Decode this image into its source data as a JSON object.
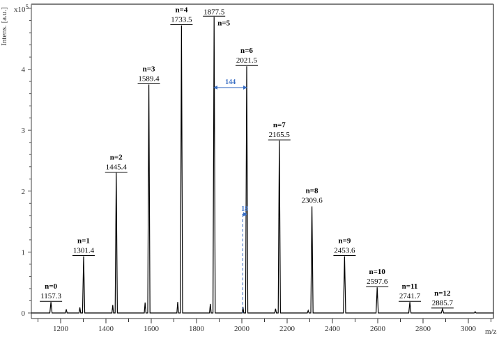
{
  "chart_data": {
    "type": "line",
    "title": "",
    "xlabel": "m/z",
    "ylabel": "Intens. [a.u.]",
    "y_multiplier": "x10^5",
    "y_multiplier_base": "x10",
    "y_multiplier_exp": "5",
    "xlim": [
      1090,
      3110
    ],
    "ylim": [
      0,
      5.0
    ],
    "x_ticks": [
      1200,
      1400,
      1600,
      1800,
      2000,
      2200,
      2400,
      2600,
      2800,
      3000
    ],
    "y_ticks": [
      0,
      1,
      2,
      3,
      4
    ],
    "grid": false,
    "legend": null,
    "peaks": [
      {
        "n": "n=0",
        "mz": "1157.3",
        "x": 1157.3,
        "y": 0.18
      },
      {
        "n": "n=1",
        "mz": "1301.4",
        "x": 1301.4,
        "y": 0.93
      },
      {
        "n": "n=2",
        "mz": "1445.4",
        "x": 1445.4,
        "y": 2.3
      },
      {
        "n": "n=3",
        "mz": "1589.4",
        "x": 1589.4,
        "y": 3.75
      },
      {
        "n": "n=4",
        "mz": "1733.5",
        "x": 1733.5,
        "y": 4.72
      },
      {
        "n": "n=5",
        "mz": "1877.5",
        "x": 1877.5,
        "y": 4.86
      },
      {
        "n": "n=6",
        "mz": "2021.5",
        "x": 2021.5,
        "y": 4.05
      },
      {
        "n": "n=7",
        "mz": "2165.5",
        "x": 2165.5,
        "y": 2.83
      },
      {
        "n": "n=8",
        "mz": "2309.6",
        "x": 2309.6,
        "y": 1.75
      },
      {
        "n": "n=9",
        "mz": "2453.6",
        "x": 2453.6,
        "y": 0.93
      },
      {
        "n": "n=10",
        "mz": "2597.6",
        "x": 2597.6,
        "y": 0.42
      },
      {
        "n": "n=11",
        "mz": "2741.7",
        "x": 2741.7,
        "y": 0.18
      },
      {
        "n": "n=12",
        "mz": "2885.7",
        "x": 2885.7,
        "y": 0.07
      }
    ],
    "minor_peaks": [
      {
        "x": 1225,
        "y": 0.06
      },
      {
        "x": 1285,
        "y": 0.09
      },
      {
        "x": 1430,
        "y": 0.13
      },
      {
        "x": 1573,
        "y": 0.17
      },
      {
        "x": 1717,
        "y": 0.18
      },
      {
        "x": 1861,
        "y": 0.15
      },
      {
        "x": 2005,
        "y": 0.1
      },
      {
        "x": 2149,
        "y": 0.07
      },
      {
        "x": 2293,
        "y": 0.04
      },
      {
        "x": 3030,
        "y": 0.02
      }
    ],
    "annotations": [
      {
        "type": "double-arrow",
        "label": "144",
        "x_from": 1877.5,
        "x_to": 2021.5,
        "y": 3.7,
        "color": "#3a6fc4"
      },
      {
        "type": "double-arrow",
        "label": "18",
        "x_from": 2003.5,
        "x_to": 2021.5,
        "y": 1.62,
        "color": "#3a6fc4",
        "dashed_drop_to_baseline": true
      }
    ]
  },
  "colors": {
    "trace": "#000000",
    "frame": "#808080",
    "annotation": "#3a6fc4"
  }
}
